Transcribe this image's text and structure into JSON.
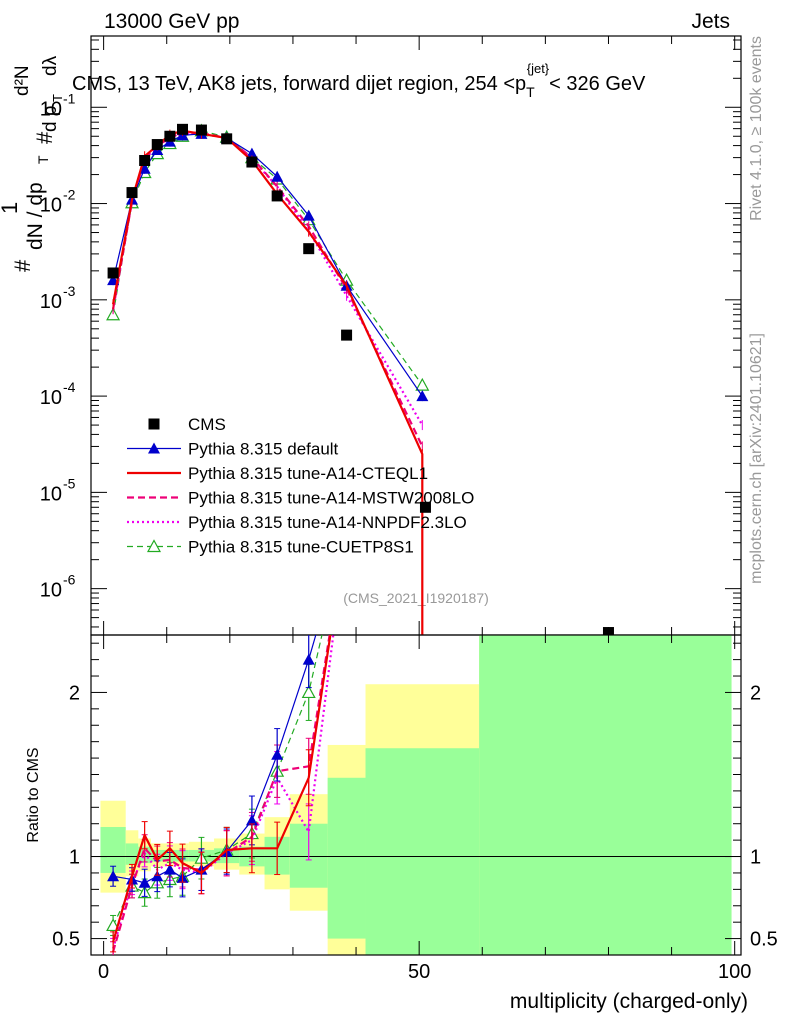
{
  "header": {
    "left": "13000 GeV pp",
    "right": "Jets"
  },
  "side": {
    "rivet": "Rivet 4.1.0, ≥ 100k events",
    "mcplots": "mcplots.cern.ch [arXiv:2401.10621]"
  },
  "colors": {
    "cms": "#000000",
    "default": "#0000cc",
    "cteql1": "#ee0000",
    "mstw": "#ee0077",
    "nnpdf": "#ee00ee",
    "cuetp8s1": "#22aa22",
    "band_outer": "#ffff99",
    "band_inner": "#99ff99"
  },
  "chart_data": {
    "type": "line",
    "title": "CMS, 13 TeV, AK8 jets, forward dijet region, 254 <p_T^{jet}> < 326 GeV",
    "title_parts": {
      "prefix": "CMS, 13 TeV, AK8 jets, forward dijet region, 254 <p",
      "sub": "T",
      "sup": "{jet}",
      "suffix": "< 326 GeV"
    },
    "ylabel_parts": {
      "hash": "#",
      "one": "1",
      "dn": "dN / dp",
      "T": "T",
      "d2n": "d²N",
      "dp": "d p",
      "dlambda": "dλ"
    },
    "ylabel": "1/dN/dp_T  d²N / d p_T dλ",
    "xlabel": "multiplicity (charged-only)",
    "ratio_ylabel": "Ratio to CMS",
    "watermark": "(CMS_2021_I1920187)",
    "xlim": [
      -2,
      101
    ],
    "ylim": [
      3.3e-07,
      0.55
    ],
    "ratio_ylim": [
      0.4,
      2.35
    ],
    "yscale": "log",
    "xticks": [
      "0",
      "50",
      "100"
    ],
    "yticks": [
      "10^{-6}",
      "10^{-5}",
      "10^{-4}",
      "10^{-3}",
      "10^{-2}",
      "10^{-1}"
    ],
    "ratio_yticks": [
      "0.5",
      "1",
      "2"
    ],
    "legend_position": "bottom-left",
    "series": [
      {
        "name": "CMS",
        "key": "cms",
        "marker": "square",
        "x": [
          1.5,
          4.5,
          6.5,
          8.5,
          10.5,
          12.5,
          15.5,
          19.5,
          23.5,
          27.5,
          32.5,
          38.5,
          51,
          80
        ],
        "y": [
          0.0019,
          0.013,
          0.028,
          0.041,
          0.05,
          0.059,
          0.058,
          0.047,
          0.027,
          0.012,
          0.0034,
          0.00043,
          7e-06,
          3.5e-07
        ]
      },
      {
        "name": "Pythia 8.315 default",
        "key": "default",
        "marker": "triangle",
        "x": [
          1.5,
          4.5,
          6.5,
          8.5,
          10.5,
          12.5,
          15.5,
          19.5,
          23.5,
          27.5,
          32.5,
          38.5,
          50.5
        ],
        "y": [
          0.0016,
          0.011,
          0.023,
          0.036,
          0.044,
          0.051,
          0.053,
          0.048,
          0.033,
          0.019,
          0.0075,
          0.0014,
          0.0001
        ]
      },
      {
        "name": "Pythia 8.315 tune-A14-CTEQL1",
        "key": "cteql1",
        "marker": "none",
        "x": [
          1.5,
          4.5,
          6.5,
          8.5,
          10.5,
          12.5,
          15.5,
          19.5,
          23.5,
          27.5,
          32.5,
          38.5,
          50.5,
          50.5
        ],
        "y": [
          0.0009,
          0.011,
          0.031,
          0.04,
          0.052,
          0.057,
          0.053,
          0.048,
          0.028,
          0.0125,
          0.0051,
          0.0014,
          2.5e-05,
          3.3e-07
        ]
      },
      {
        "name": "Pythia 8.315 tune-A14-MSTW2008LO",
        "key": "mstw",
        "marker": "none",
        "x": [
          1.5,
          4.5,
          6.5,
          8.5,
          10.5,
          12.5,
          15.5,
          19.5,
          23.5,
          27.5,
          32.5,
          38.5,
          50.5
        ],
        "y": [
          0.0008,
          0.0105,
          0.029,
          0.04,
          0.048,
          0.055,
          0.054,
          0.048,
          0.03,
          0.015,
          0.0058,
          0.0013,
          3e-05
        ]
      },
      {
        "name": "Pythia 8.315 tune-A14-NNPDF2.3LO",
        "key": "nnpdf",
        "marker": "none",
        "x": [
          1.5,
          4.5,
          6.5,
          8.5,
          10.5,
          12.5,
          15.5,
          19.5,
          23.5,
          27.5,
          32.5,
          38.5,
          50.5
        ],
        "y": [
          0.0008,
          0.0106,
          0.029,
          0.039,
          0.048,
          0.054,
          0.053,
          0.048,
          0.029,
          0.015,
          0.0052,
          0.0011,
          5e-05
        ]
      },
      {
        "name": "Pythia 8.315 tune-CUETP8S1",
        "key": "cuetp8s1",
        "marker": "open-triangle",
        "x": [
          1.5,
          4.5,
          6.5,
          8.5,
          10.5,
          12.5,
          15.5,
          19.5,
          23.5,
          27.5,
          32.5,
          38.5,
          50.5
        ],
        "y": [
          0.0007,
          0.0102,
          0.021,
          0.033,
          0.042,
          0.05,
          0.057,
          0.049,
          0.03,
          0.018,
          0.0068,
          0.0016,
          0.00013
        ]
      }
    ],
    "ratio": {
      "bands": [
        {
          "x0": -0.5,
          "x1": 3.5,
          "inner": [
            0.9,
            1.18
          ],
          "outer": [
            0.78,
            1.34
          ]
        },
        {
          "x0": 3.5,
          "x1": 5.5,
          "inner": [
            0.95,
            1.08
          ],
          "outer": [
            0.88,
            1.16
          ]
        },
        {
          "x0": 5.5,
          "x1": 7.5,
          "inner": [
            0.96,
            1.06
          ],
          "outer": [
            0.91,
            1.11
          ]
        },
        {
          "x0": 7.5,
          "x1": 13.5,
          "inner": [
            0.97,
            1.04
          ],
          "outer": [
            0.94,
            1.08
          ]
        },
        {
          "x0": 13.5,
          "x1": 17.5,
          "inner": [
            0.97,
            1.04
          ],
          "outer": [
            0.94,
            1.09
          ]
        },
        {
          "x0": 17.5,
          "x1": 21.5,
          "inner": [
            0.96,
            1.05
          ],
          "outer": [
            0.92,
            1.11
          ]
        },
        {
          "x0": 21.5,
          "x1": 25.5,
          "inner": [
            0.94,
            1.06
          ],
          "outer": [
            0.89,
            1.14
          ]
        },
        {
          "x0": 25.5,
          "x1": 29.5,
          "inner": [
            0.89,
            1.12
          ],
          "outer": [
            0.8,
            1.24
          ]
        },
        {
          "x0": 29.5,
          "x1": 35.5,
          "inner": [
            0.81,
            1.2
          ],
          "outer": [
            0.67,
            1.38
          ]
        },
        {
          "x0": 35.5,
          "x1": 41.5,
          "inner": [
            0.5,
            1.48
          ],
          "outer": [
            0.4,
            1.68
          ]
        },
        {
          "x0": 41.5,
          "x1": 59.5,
          "inner": [
            0.4,
            1.66
          ],
          "outer": [
            0.4,
            2.05
          ]
        },
        {
          "x0": 59.5,
          "x1": 99.5,
          "inner": [
            0.4,
            2.35
          ],
          "outer": [
            0.4,
            2.35
          ]
        }
      ],
      "series": [
        {
          "key": "default",
          "x": [
            1.5,
            4.5,
            6.5,
            8.5,
            10.5,
            12.5,
            15.5,
            19.5,
            23.5,
            27.5,
            32.5,
            38.5
          ],
          "y": [
            0.88,
            0.86,
            0.84,
            0.88,
            0.92,
            0.87,
            0.92,
            1.03,
            1.22,
            1.62,
            2.2,
            3.0
          ]
        },
        {
          "key": "cteql1",
          "x": [
            1.5,
            4.5,
            6.5,
            8.5,
            10.5,
            12.5,
            15.5,
            19.5,
            23.5,
            27.5,
            32.5,
            38.5
          ],
          "y": [
            0.48,
            0.88,
            1.13,
            0.98,
            1.05,
            0.96,
            0.9,
            1.04,
            1.05,
            1.05,
            1.48,
            3.0
          ]
        },
        {
          "key": "mstw",
          "x": [
            1.5,
            4.5,
            6.5,
            8.5,
            10.5,
            12.5,
            15.5,
            19.5,
            23.5,
            27.5,
            32.5,
            38.5
          ],
          "y": [
            0.42,
            0.82,
            1.05,
            0.97,
            0.98,
            0.93,
            0.92,
            1.02,
            1.12,
            1.52,
            1.55,
            3.0
          ]
        },
        {
          "key": "nnpdf",
          "x": [
            1.5,
            4.5,
            6.5,
            8.5,
            10.5,
            12.5,
            15.5,
            19.5,
            23.5,
            27.5,
            32.5,
            38.5
          ],
          "y": [
            0.44,
            0.84,
            1.02,
            0.92,
            0.96,
            0.92,
            0.9,
            1.02,
            1.1,
            1.48,
            1.15,
            3.0
          ]
        },
        {
          "key": "cuetp8s1",
          "x": [
            1.5,
            4.5,
            6.5,
            8.5,
            10.5,
            12.5,
            15.5,
            19.5,
            23.5,
            27.5,
            32.5,
            38.5
          ],
          "y": [
            0.58,
            0.82,
            0.78,
            0.84,
            0.86,
            0.88,
            0.99,
            1.04,
            1.14,
            1.52,
            2.0,
            3.0
          ]
        }
      ]
    }
  }
}
